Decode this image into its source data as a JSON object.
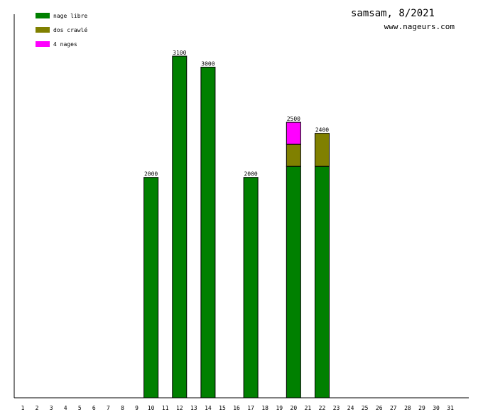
{
  "header": {
    "title": "samsam, 8/2021",
    "site": "www.nageurs.com"
  },
  "chart_data": {
    "type": "bar",
    "stacked": true,
    "title": "samsam, 8/2021",
    "xlabel": "",
    "ylabel": "",
    "ylim": [
      0,
      3100
    ],
    "grid": false,
    "legend_position": "top-left",
    "categories": [
      "1",
      "2",
      "3",
      "4",
      "5",
      "6",
      "7",
      "8",
      "9",
      "10",
      "11",
      "12",
      "13",
      "14",
      "15",
      "16",
      "17",
      "18",
      "19",
      "20",
      "21",
      "22",
      "23",
      "24",
      "25",
      "26",
      "27",
      "28",
      "29",
      "30",
      "31"
    ],
    "series": [
      {
        "name": "nage libre",
        "color": "#008000",
        "values": [
          0,
          0,
          0,
          0,
          0,
          0,
          0,
          0,
          0,
          2000,
          0,
          3100,
          0,
          3000,
          0,
          0,
          2000,
          0,
          0,
          2100,
          0,
          2100,
          0,
          0,
          0,
          0,
          0,
          0,
          0,
          0,
          0
        ]
      },
      {
        "name": "dos crawlé",
        "color": "#808000",
        "values": [
          0,
          0,
          0,
          0,
          0,
          0,
          0,
          0,
          0,
          0,
          0,
          0,
          0,
          0,
          0,
          0,
          0,
          0,
          0,
          200,
          0,
          300,
          0,
          0,
          0,
          0,
          0,
          0,
          0,
          0,
          0
        ]
      },
      {
        "name": "4 nages",
        "color": "#ff00ff",
        "values": [
          0,
          0,
          0,
          0,
          0,
          0,
          0,
          0,
          0,
          0,
          0,
          0,
          0,
          0,
          0,
          0,
          0,
          0,
          0,
          200,
          0,
          0,
          0,
          0,
          0,
          0,
          0,
          0,
          0,
          0,
          0
        ]
      }
    ],
    "totals": [
      null,
      null,
      null,
      null,
      null,
      null,
      null,
      null,
      null,
      2000,
      null,
      3100,
      null,
      3000,
      null,
      null,
      2000,
      null,
      null,
      2500,
      null,
      2400,
      null,
      null,
      null,
      null,
      null,
      null,
      null,
      null,
      null
    ]
  }
}
